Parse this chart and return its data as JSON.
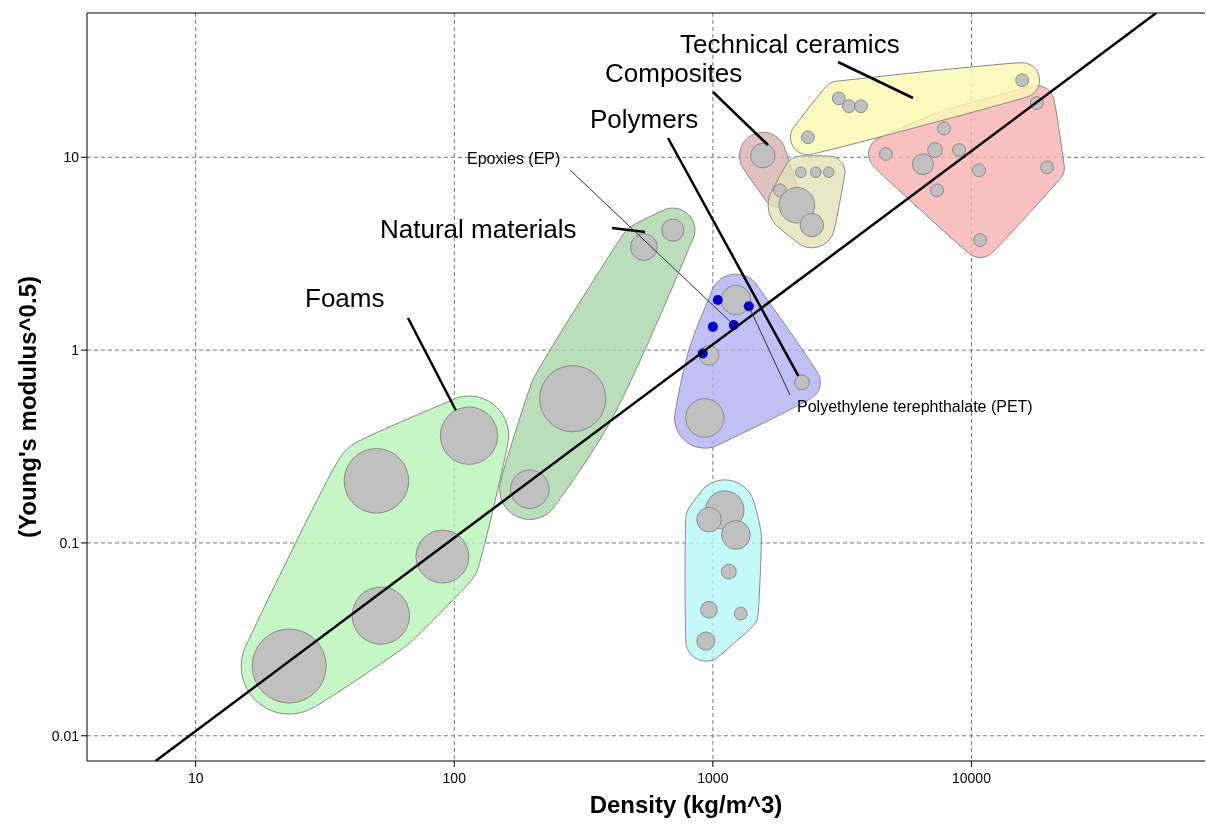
{
  "chart_data": {
    "type": "bubble",
    "xlabel": "Density (kg/m^3)",
    "ylabel": "(Young's modulus^0.5)",
    "log": "xy",
    "grid": true,
    "xlim": [
      3.8,
      80000
    ],
    "ylim": [
      0.0074,
      56
    ],
    "xticks": [
      10,
      100,
      1000,
      10000
    ],
    "yticks": [
      0.01,
      0.1,
      1,
      10
    ],
    "series": [
      {
        "name": "Foams",
        "color": "#c0c0c0",
        "x": [
          23,
          52,
          90,
          50,
          114
        ],
        "values": [
          0.023,
          0.042,
          0.085,
          0.21,
          0.36
        ],
        "sizes": [
          1,
          0.6,
          0.51,
          0.76,
          0.6
        ]
      },
      {
        "name": "Natural materials",
        "color": "#c0c0c0",
        "x": [
          287,
          196,
          541,
          700
        ],
        "values": [
          0.56,
          0.19,
          3.42,
          4.19
        ],
        "sizes": [
          0.8,
          0.27,
          0.13,
          0.09
        ]
      },
      {
        "name": "Polymers",
        "color": "#c0c0c0",
        "x": [
          931,
          966,
          2210,
          1228
        ],
        "values": [
          0.445,
          0.94,
          0.68,
          1.82
        ],
        "sizes": [
          0.27,
          0.07,
          0.04,
          0.16
        ]
      },
      {
        "color": "#c0c0c0",
        "x": [
          1112,
          966,
          1228,
          1153,
          966,
          940,
          1282
        ],
        "values": [
          0.148,
          0.132,
          0.11,
          0.071,
          0.045,
          0.031,
          0.043
        ],
        "sizes": [
          0.27,
          0.11,
          0.15,
          0.04,
          0.05,
          0.06,
          0.03
        ]
      },
      {
        "name": "Composites",
        "color": "#c0c0c0",
        "x": [
          1560,
          1816
        ],
        "values": [
          10.2,
          6.74
        ],
        "sizes": [
          0.11,
          0.03
        ]
      },
      {
        "color": "#c0c0c0",
        "x": [
          2113,
          2415,
          2188,
          2500,
          2806
        ],
        "values": [
          5.64,
          4.45,
          8.36,
          8.36,
          8.36
        ],
        "sizes": [
          0.23,
          0.1,
          0.02,
          0.02,
          0.02
        ]
      },
      {
        "color": "#c0c0c0",
        "x": [
          6490,
          7230,
          7830,
          4670,
          8950,
          7360,
          10700,
          10800,
          19600,
          17900
        ],
        "values": [
          9.2,
          10.9,
          14.1,
          10.4,
          10.9,
          6.74,
          8.57,
          3.72,
          8.87,
          19.1
        ],
        "sizes": [
          0.08,
          0.04,
          0.03,
          0.03,
          0.03,
          0.03,
          0.03,
          0.03,
          0.03,
          0.03
        ]
      },
      {
        "name": "Technical ceramics",
        "color": "#c0c0c0",
        "x": [
          2330,
          3070,
          3360,
          3740,
          15700
        ],
        "values": [
          12.7,
          20.2,
          18.4,
          18.4,
          25.1
        ],
        "sizes": [
          0.03,
          0.03,
          0.03,
          0.03,
          0.03
        ]
      },
      {
        "type": "scatter",
        "color": "#0000cc",
        "x": [
          914,
          1000,
          1045,
          1205,
          1377
        ],
        "values": [
          0.96,
          1.32,
          1.82,
          1.35,
          1.69
        ]
      },
      {
        "type": "line",
        "color": "#000000",
        "x": [
          7,
          51800
        ],
        "values": [
          0.0074,
          56
        ]
      }
    ],
    "annotations": [
      {
        "text": "Epoxies (EP)",
        "x": 1205,
        "y": 1.35
      },
      {
        "text": "Polyethylene terephthalate (PET)",
        "x": 1377,
        "y": 1.69
      }
    ]
  }
}
